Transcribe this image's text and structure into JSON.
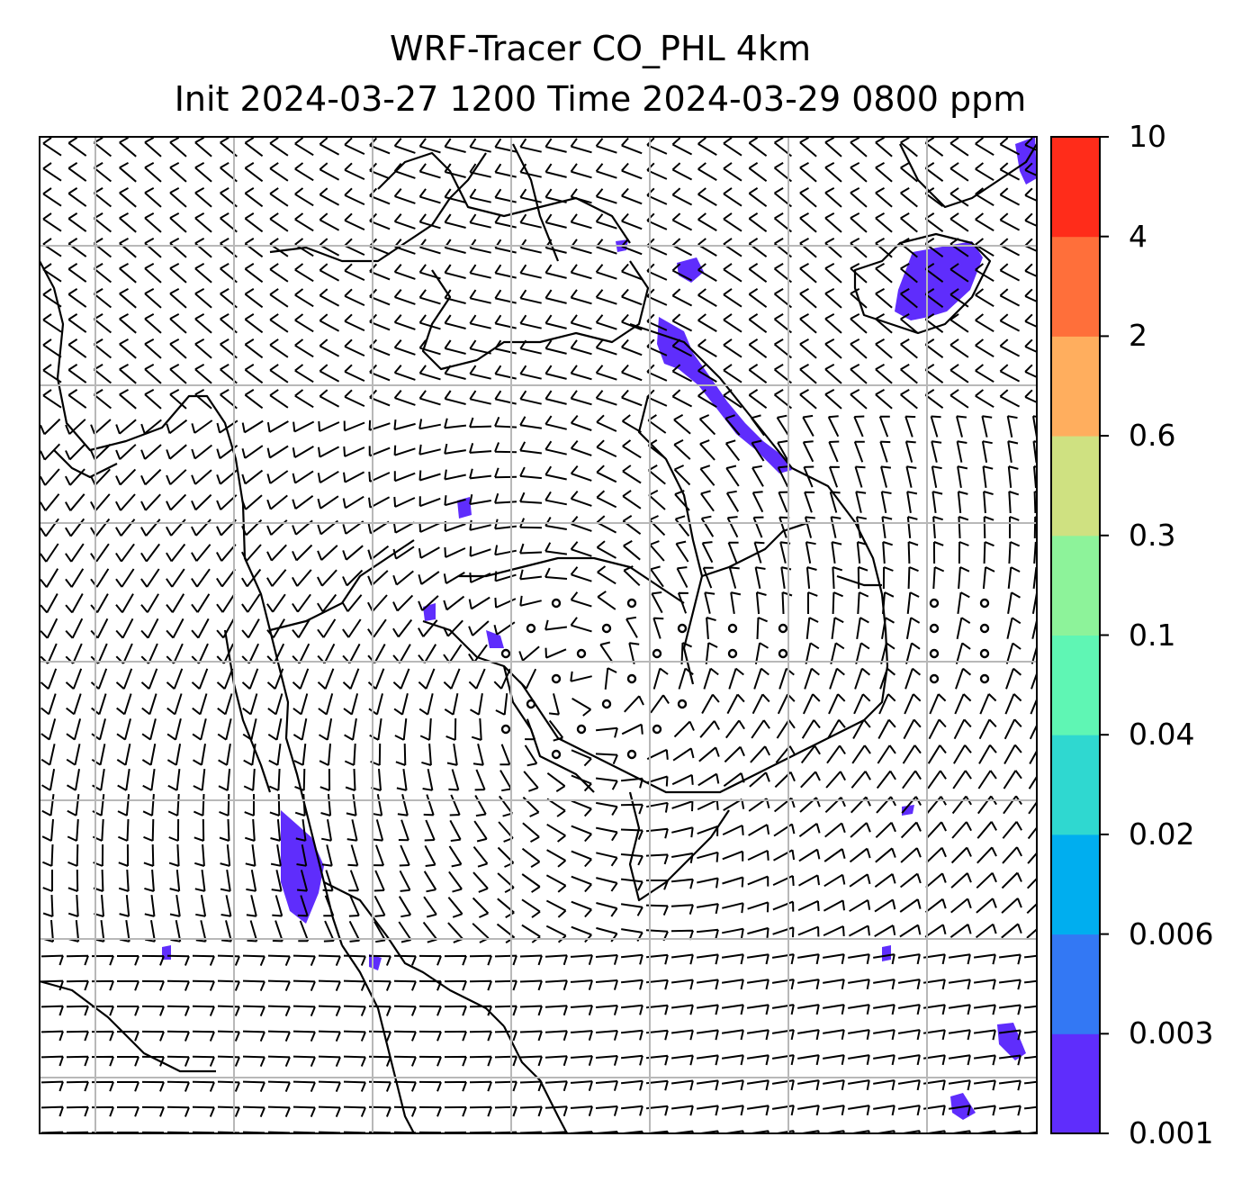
{
  "title_line1": "WRF-Tracer CO_PHL 4km",
  "title_line2": "Init 2024-03-27 1200 Time 2024-03-29 0800 ppm",
  "colorbar": {
    "levels": [
      "0.001",
      "0.003",
      "0.006",
      "0.02",
      "0.04",
      "0.1",
      "0.3",
      "0.6",
      "2",
      "4",
      "10"
    ],
    "colors": [
      "#5f2dfc",
      "#3378f4",
      "#00aeef",
      "#2fd8d0",
      "#5ff6b4",
      "#8df39a",
      "#cfe181",
      "#ffae5e",
      "#ff6f3a",
      "#ff2c1a"
    ]
  },
  "map": {
    "background": "#ffffff",
    "gridline_color": "#b8b8b8",
    "coastline_color": "#000000",
    "tracer_color": "#5f2dfc",
    "wind_barb_color": "#000000",
    "calm_marker": "circle"
  }
}
